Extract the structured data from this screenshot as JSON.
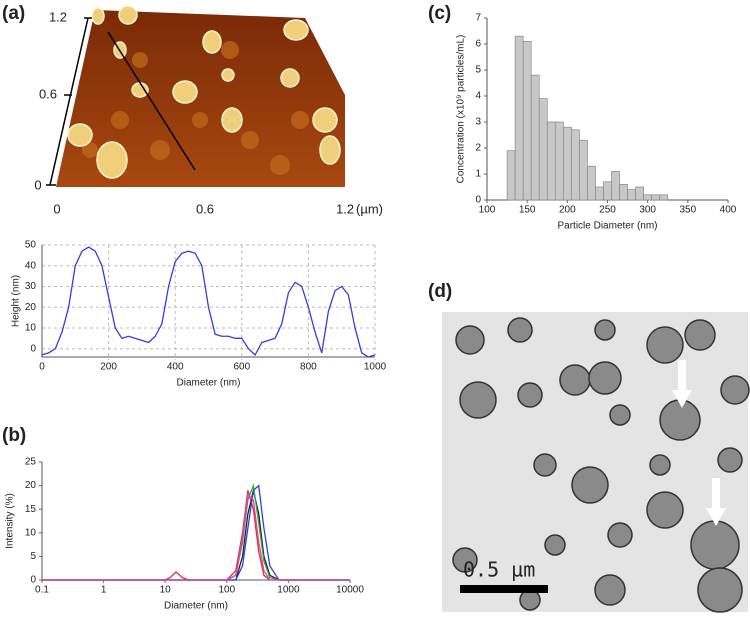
{
  "panel_labels": [
    "(a)",
    "(b)",
    "(c)",
    "(d)"
  ],
  "afm": {
    "yticks": [
      "1.2",
      "0.6",
      "0"
    ],
    "xticks": [
      "0",
      "0.6",
      "1.2"
    ],
    "unit": "(µm)"
  },
  "tem": {
    "scale_bar": "0.5 µm"
  },
  "chart_data": [
    {
      "type": "line",
      "xlabel": "Diameter (nm)",
      "ylabel": "Height (nm)",
      "grid": true,
      "x": [
        0,
        20,
        40,
        60,
        80,
        100,
        120,
        140,
        160,
        180,
        200,
        220,
        240,
        260,
        280,
        300,
        320,
        340,
        360,
        380,
        400,
        420,
        440,
        460,
        480,
        500,
        520,
        540,
        560,
        580,
        600,
        620,
        640,
        660,
        680,
        700,
        720,
        740,
        760,
        780,
        800,
        820,
        840,
        860,
        880,
        900,
        920,
        940,
        960,
        980,
        1000
      ],
      "series": [
        {
          "color": "#3a3ae0",
          "values": [
            -3,
            -2,
            0,
            8,
            20,
            40,
            47,
            49,
            47,
            40,
            25,
            10,
            5,
            6,
            5,
            4,
            3,
            6,
            12,
            30,
            42,
            46,
            47,
            46,
            40,
            20,
            7,
            6,
            6,
            5,
            5,
            0,
            -3,
            3,
            4,
            5,
            12,
            27,
            32,
            30,
            20,
            8,
            -2,
            18,
            28,
            30,
            26,
            10,
            -2,
            -4,
            -3
          ]
        }
      ],
      "xlim": [
        0,
        1000
      ],
      "xticks": [
        0,
        200,
        400,
        600,
        800,
        1000
      ],
      "ylim": [
        -4,
        50
      ],
      "yticks": [
        0,
        10,
        20,
        30,
        40,
        50
      ]
    },
    {
      "type": "line",
      "xlabel": "Diameter (nm)",
      "ylabel": "Intensity (%)",
      "xscale": "log",
      "x": [
        0.1,
        1,
        10,
        12,
        15,
        19,
        24,
        100,
        140,
        180,
        220,
        270,
        330,
        400,
        500,
        700,
        1000,
        10000
      ],
      "series": [
        {
          "color": "#222222",
          "values": [
            0,
            0,
            0,
            0,
            0,
            0,
            0,
            0,
            0,
            5,
            14,
            19,
            14,
            5,
            1,
            0,
            0,
            0
          ]
        },
        {
          "color": "#e03030",
          "values": [
            0,
            0,
            0,
            0.5,
            1.7,
            0.5,
            0,
            0,
            2,
            10,
            19,
            15,
            6,
            1,
            0,
            0,
            0,
            0
          ]
        },
        {
          "color": "#30b030",
          "values": [
            0,
            0,
            0,
            0,
            0,
            0,
            0,
            0,
            1,
            8,
            17,
            20,
            12,
            4,
            0.5,
            0,
            0,
            0
          ]
        },
        {
          "color": "#3040e0",
          "values": [
            0,
            0,
            0,
            0,
            0,
            0,
            0,
            0,
            0,
            3,
            11,
            19,
            20,
            11,
            3,
            0,
            0,
            0
          ]
        },
        {
          "color": "#e040c0",
          "values": [
            0,
            0,
            0,
            0,
            0,
            0,
            0,
            0,
            1,
            9,
            18,
            17,
            8,
            2,
            0,
            0,
            0,
            0
          ]
        }
      ],
      "xlim": [
        0.1,
        10000
      ],
      "xticks": [
        0.1,
        1,
        10,
        100,
        1000,
        10000
      ],
      "ylim": [
        0,
        25
      ],
      "yticks": [
        0,
        5,
        10,
        15,
        20,
        25
      ]
    },
    {
      "type": "histogram",
      "xlabel": "Particle Diameter (nm)",
      "ylabel": "Concentration (x10⁹ particles/mL)",
      "color": "#c8c8c8",
      "bins": [
        125,
        135,
        145,
        155,
        165,
        175,
        185,
        195,
        205,
        215,
        225,
        235,
        245,
        255,
        265,
        275,
        285,
        295,
        305,
        315,
        325
      ],
      "values": [
        1.9,
        6.3,
        6.1,
        4.8,
        3.9,
        3.0,
        3.0,
        2.8,
        2.7,
        2.3,
        1.3,
        0.5,
        0.7,
        1.1,
        0.6,
        0.4,
        0.5,
        0.2,
        0.2,
        0.2
      ],
      "xlim": [
        100,
        400
      ],
      "xticks": [
        100,
        150,
        200,
        250,
        300,
        350,
        400
      ],
      "ylim": [
        0,
        7
      ],
      "yticks": [
        0,
        1,
        2,
        3,
        4,
        5,
        6,
        7
      ]
    }
  ]
}
